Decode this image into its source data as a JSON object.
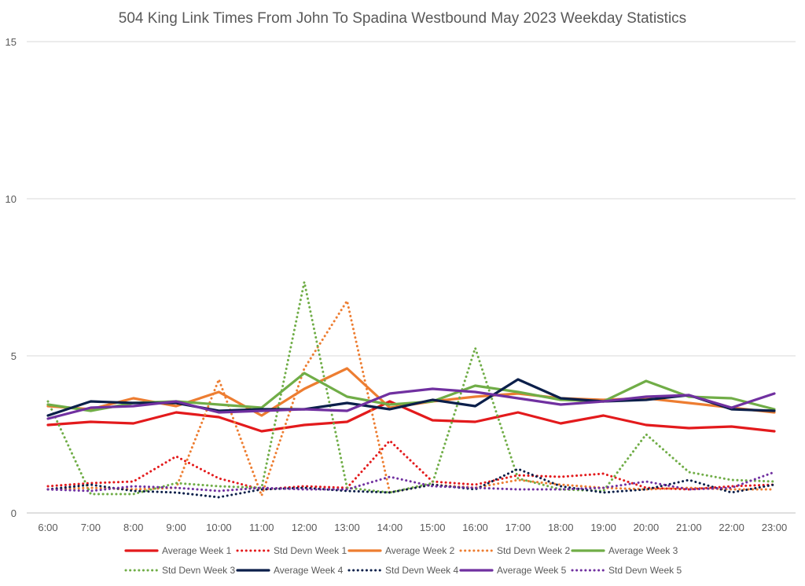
{
  "chart_data": {
    "type": "line",
    "title": "504 King Link Times From John To Spadina Westbound May 2023 Weekday Statistics",
    "xlabel": "",
    "ylabel": "",
    "ylim": [
      0,
      15
    ],
    "yticks": [
      0,
      5,
      10,
      15
    ],
    "grid": true,
    "legend_position": "bottom",
    "categories": [
      "6:00",
      "7:00",
      "8:00",
      "9:00",
      "10:00",
      "11:00",
      "12:00",
      "13:00",
      "14:00",
      "15:00",
      "16:00",
      "17:00",
      "18:00",
      "19:00",
      "20:00",
      "21:00",
      "22:00",
      "23:00"
    ],
    "series": [
      {
        "name": "Average Week 1",
        "color": "#e31a1c",
        "style": "solid",
        "values": [
          2.8,
          2.9,
          2.85,
          3.2,
          3.05,
          2.6,
          2.8,
          2.9,
          3.55,
          2.95,
          2.9,
          3.2,
          2.85,
          3.1,
          2.8,
          2.7,
          2.75,
          2.6
        ]
      },
      {
        "name": "Std Devn Week 1",
        "color": "#e31a1c",
        "style": "dotted",
        "values": [
          0.85,
          0.95,
          1.0,
          1.8,
          1.1,
          0.75,
          0.85,
          0.8,
          2.3,
          1.0,
          0.9,
          1.2,
          1.15,
          1.25,
          0.8,
          0.75,
          0.85,
          0.9
        ]
      },
      {
        "name": "Average Week 2",
        "color": "#ed7d31",
        "style": "solid",
        "values": [
          3.4,
          3.3,
          3.65,
          3.4,
          3.85,
          3.1,
          3.95,
          4.6,
          3.35,
          3.55,
          3.7,
          3.8,
          3.65,
          3.6,
          3.65,
          3.5,
          3.35,
          3.2
        ]
      },
      {
        "name": "Std Devn Week 2",
        "color": "#ed7d31",
        "style": "dotted",
        "values": [
          0.75,
          0.8,
          0.75,
          0.8,
          4.25,
          0.55,
          4.6,
          6.75,
          0.65,
          0.9,
          0.8,
          1.05,
          0.9,
          0.8,
          0.75,
          0.8,
          0.75,
          0.75
        ]
      },
      {
        "name": "Average Week 3",
        "color": "#70ad47",
        "style": "solid",
        "values": [
          3.45,
          3.25,
          3.5,
          3.55,
          3.45,
          3.35,
          4.45,
          3.7,
          3.45,
          3.55,
          4.05,
          3.85,
          3.6,
          3.55,
          4.2,
          3.7,
          3.65,
          3.3
        ]
      },
      {
        "name": "Std Devn Week 3",
        "color": "#70ad47",
        "style": "dotted",
        "values": [
          3.55,
          0.6,
          0.6,
          0.95,
          0.85,
          0.8,
          7.35,
          0.8,
          0.65,
          0.95,
          5.25,
          1.1,
          0.75,
          0.7,
          2.5,
          1.3,
          1.05,
          1.0
        ]
      },
      {
        "name": "Average Week 4",
        "color": "#0b1f4a",
        "style": "solid",
        "values": [
          3.1,
          3.55,
          3.5,
          3.5,
          3.25,
          3.3,
          3.3,
          3.5,
          3.3,
          3.6,
          3.4,
          4.25,
          3.65,
          3.55,
          3.6,
          3.75,
          3.3,
          3.25
        ]
      },
      {
        "name": "Std Devn Week 4",
        "color": "#0b1f4a",
        "style": "dotted",
        "values": [
          0.75,
          0.9,
          0.7,
          0.65,
          0.5,
          0.75,
          0.8,
          0.7,
          0.65,
          0.9,
          0.75,
          1.4,
          0.85,
          0.65,
          0.75,
          1.05,
          0.65,
          0.9
        ]
      },
      {
        "name": "Average Week 5",
        "color": "#7030a0",
        "style": "solid",
        "values": [
          3.0,
          3.35,
          3.4,
          3.55,
          3.2,
          3.25,
          3.3,
          3.25,
          3.8,
          3.95,
          3.85,
          3.65,
          3.45,
          3.55,
          3.7,
          3.75,
          3.35,
          3.8
        ]
      },
      {
        "name": "Std Devn Week 5",
        "color": "#7030a0",
        "style": "dotted",
        "values": [
          0.75,
          0.7,
          0.85,
          0.8,
          0.7,
          0.8,
          0.75,
          0.75,
          1.15,
          0.85,
          0.8,
          0.75,
          0.75,
          0.8,
          1.0,
          0.75,
          0.8,
          1.3
        ]
      }
    ]
  }
}
